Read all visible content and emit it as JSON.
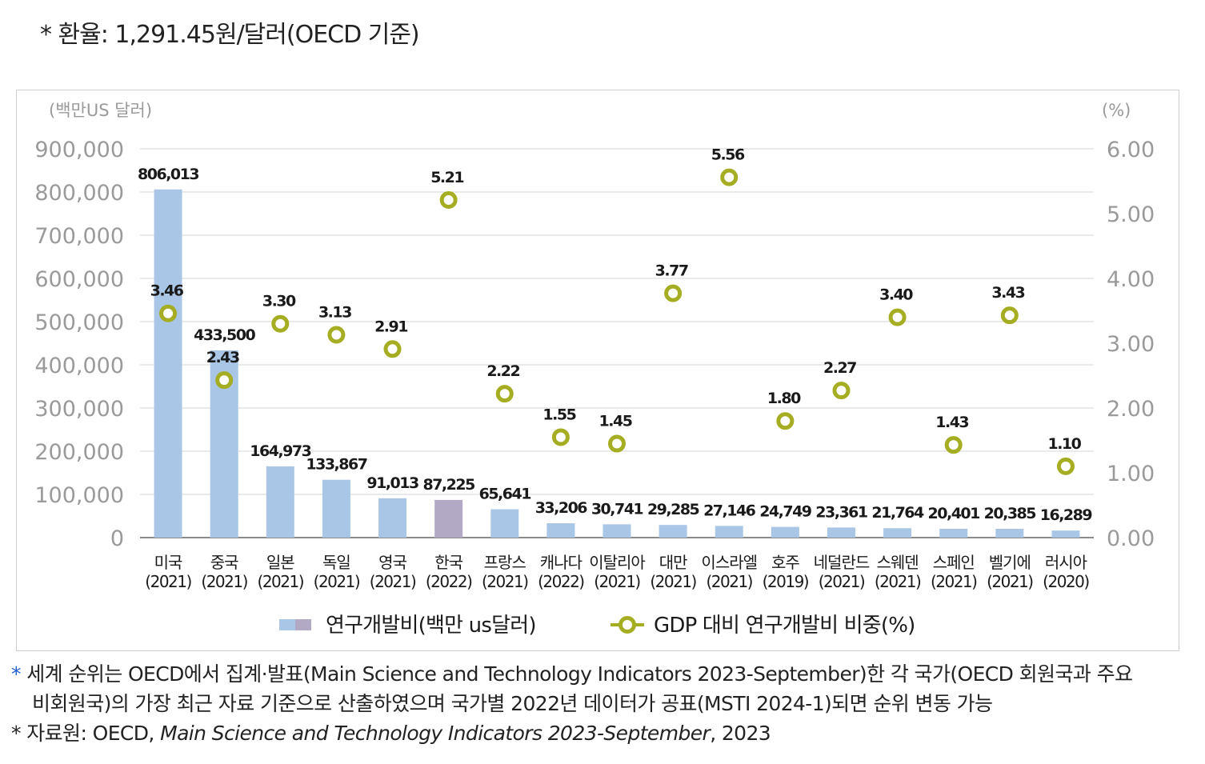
{
  "header_note": "* 환율: 1,291.45원/달러(OECD 기준)",
  "chart_data": {
    "type": "bar+line",
    "y_left_unit": "(백만US 달러)",
    "y_right_unit": "(%)",
    "y_left_ticks": [
      "900,000",
      "800,000",
      "700,000",
      "600,000",
      "500,000",
      "400,000",
      "300,000",
      "200,000",
      "100,000",
      "0"
    ],
    "y_right_ticks": [
      "6.00",
      "5.00",
      "4.00",
      "3.00",
      "2.00",
      "1.00",
      "0.00"
    ],
    "ylim_left": [
      0,
      900000
    ],
    "ylim_right": [
      0,
      6
    ],
    "grid": true,
    "categories": [
      {
        "name": "미국",
        "year": "(2021)"
      },
      {
        "name": "중국",
        "year": "(2021)"
      },
      {
        "name": "일본",
        "year": "(2021)"
      },
      {
        "name": "독일",
        "year": "(2021)"
      },
      {
        "name": "영국",
        "year": "(2021)"
      },
      {
        "name": "한국",
        "year": "(2022)"
      },
      {
        "name": "프랑스",
        "year": "(2021)"
      },
      {
        "name": "캐나다",
        "year": "(2022)"
      },
      {
        "name": "이탈리아",
        "year": "(2021)"
      },
      {
        "name": "대만",
        "year": "(2021)"
      },
      {
        "name": "이스라엘",
        "year": "(2021)"
      },
      {
        "name": "호주",
        "year": "(2019)"
      },
      {
        "name": "네덜란드",
        "year": "(2021)"
      },
      {
        "name": "스웨덴",
        "year": "(2021)"
      },
      {
        "name": "스페인",
        "year": "(2021)"
      },
      {
        "name": "벨기에",
        "year": "(2021)"
      },
      {
        "name": "러시아",
        "year": "(2020)"
      }
    ],
    "series": [
      {
        "name": "연구개발비(백만 us달러)",
        "type": "bar",
        "axis": "left",
        "values": [
          806013,
          433500,
          164973,
          133867,
          91013,
          87225,
          65641,
          33206,
          30741,
          29285,
          27146,
          24749,
          23361,
          21764,
          20401,
          20385,
          16289
        ],
        "labels": [
          "806,013",
          "433,500",
          "164,973",
          "133,867",
          "91,013",
          "87,225",
          "65,641",
          "33,206",
          "30,741",
          "29,285",
          "27,146",
          "24,749",
          "23,361",
          "21,764",
          "20,401",
          "20,385",
          "16,289"
        ],
        "color": "#aac6e6",
        "highlight_color": "#b2aac5",
        "highlight_index": 5
      },
      {
        "name": "GDP 대비 연구개발비 비중(%)",
        "type": "line-markers",
        "axis": "right",
        "values": [
          3.46,
          2.43,
          3.3,
          3.13,
          2.91,
          5.21,
          2.22,
          1.55,
          1.45,
          3.77,
          5.56,
          1.8,
          2.27,
          3.4,
          1.43,
          3.43,
          1.1
        ],
        "labels": [
          "3.46",
          "2.43",
          "3.30",
          "3.13",
          "2.91",
          "5.21",
          "2.22",
          "1.55",
          "1.45",
          "3.77",
          "5.56",
          "1.80",
          "2.27",
          "3.40",
          "1.43",
          "3.43",
          "1.10"
        ],
        "color": "#a5ad22"
      }
    ]
  },
  "footnotes": {
    "line1": "* 세계 순위는 OECD에서 집계·발표(Main Science and Technology Indicators 2023-September)한 각 국가(OECD 회원국과 주요",
    "line2": "비회원국)의 가장 최근 자료 기준으로 산출하였으며 국가별 2022년 데이터가 공표(MSTI 2024-1)되면 순위 변동 가능",
    "source_prefix": "* 자료원: OECD, ",
    "source_title": "Main Science and Technology Indicators 2023-September",
    "source_suffix": ", 2023"
  }
}
